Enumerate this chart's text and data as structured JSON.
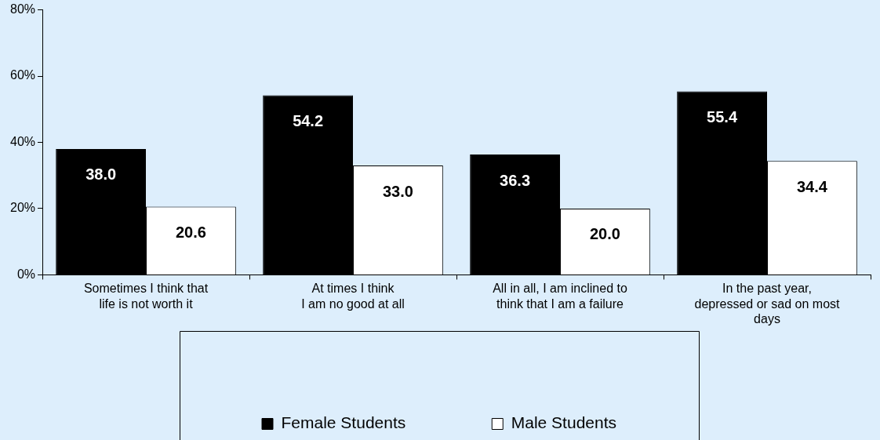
{
  "chart_data": {
    "type": "bar",
    "categories": [
      "Sometimes I think that\nlife is not worth it",
      "At times I think\nI am no good at all",
      "All in all, I am inclined to\nthink that I am a failure",
      "In the past year,\ndepressed or sad on most\ndays"
    ],
    "series": [
      {
        "name": "Female Students",
        "color": "#000000",
        "values": [
          38.0,
          54.2,
          36.3,
          55.4
        ],
        "value_labels": [
          "38.0",
          "54.2",
          "36.3",
          "55.4"
        ]
      },
      {
        "name": "Male Students",
        "color": "#ffffff",
        "values": [
          20.6,
          33.0,
          20.0,
          34.4
        ],
        "value_labels": [
          "20.6",
          "33.0",
          "20.0",
          "34.4"
        ]
      }
    ],
    "ylim": [
      0,
      80
    ],
    "yticks": [
      {
        "value": 0,
        "label": "0%"
      },
      {
        "value": 20,
        "label": "20%"
      },
      {
        "value": 40,
        "label": "40%"
      },
      {
        "value": 60,
        "label": "60%"
      },
      {
        "value": 80,
        "label": "80%"
      }
    ],
    "grid": false,
    "legend": "bottom"
  }
}
